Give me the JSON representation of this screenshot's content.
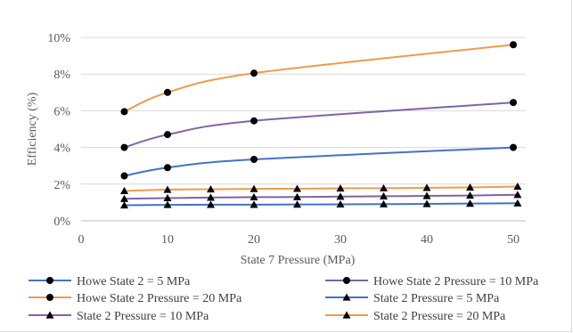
{
  "chart_data": {
    "type": "scatter",
    "xlabel": "State 7 Pressure (MPa)",
    "ylabel": "Efficiency (%)",
    "xlim": [
      0,
      50
    ],
    "ylim": [
      0,
      10
    ],
    "x_ticks": [
      0,
      10,
      20,
      30,
      40,
      50
    ],
    "y_ticks": [
      0,
      2,
      4,
      6,
      8,
      10
    ],
    "y_tick_labels": [
      "0%",
      "2%",
      "4%",
      "6%",
      "8%",
      "10%"
    ],
    "x_tick_labels": [
      "0",
      "10",
      "20",
      "30",
      "40",
      "50"
    ],
    "grid": "horizontal",
    "legend_position": "bottom",
    "series": [
      {
        "name": "Howe State 2 = 5 MPa",
        "color": "#4472c4",
        "marker": "circle",
        "x": [
          5,
          10,
          20,
          50
        ],
        "y": [
          2.45,
          2.9,
          3.35,
          4.0
        ]
      },
      {
        "name": "Howe State 2 Pressure = 10 MPa",
        "color": "#8064a2",
        "marker": "circle",
        "x": [
          5,
          10,
          20,
          50
        ],
        "y": [
          4.0,
          4.7,
          5.45,
          6.45
        ]
      },
      {
        "name": "Howe State 2 Pressure = 20 MPa",
        "color": "#ed9c4c",
        "marker": "circle",
        "x": [
          5,
          10,
          20,
          50
        ],
        "y": [
          5.95,
          7.0,
          8.05,
          9.6
        ]
      },
      {
        "name": "State 2 Pressure = 5 MPa",
        "color": "#4472c4",
        "marker": "triangle",
        "x": [
          5,
          10,
          15,
          20,
          25,
          30,
          35,
          40,
          45,
          50.5
        ],
        "y": [
          0.85,
          0.87,
          0.88,
          0.88,
          0.89,
          0.9,
          0.91,
          0.92,
          0.94,
          0.96
        ]
      },
      {
        "name": "State 2 Pressure = 10 MPa",
        "color": "#8064a2",
        "marker": "triangle",
        "x": [
          5,
          10,
          15,
          20,
          25,
          30,
          35,
          40,
          45,
          50.5
        ],
        "y": [
          1.2,
          1.24,
          1.27,
          1.29,
          1.3,
          1.32,
          1.34,
          1.36,
          1.38,
          1.42
        ]
      },
      {
        "name": "State 2 Pressure = 20 MPa",
        "color": "#ed9c4c",
        "marker": "triangle",
        "x": [
          5,
          10,
          15,
          20,
          25,
          30,
          35,
          40,
          45,
          50.5
        ],
        "y": [
          1.63,
          1.7,
          1.72,
          1.74,
          1.75,
          1.77,
          1.78,
          1.8,
          1.82,
          1.87
        ]
      }
    ],
    "legend": [
      {
        "series": 0,
        "row": 0,
        "col": 0
      },
      {
        "series": 2,
        "row": 1,
        "col": 0
      },
      {
        "series": 4,
        "row": 2,
        "col": 0
      },
      {
        "series": 1,
        "row": 0,
        "col": 1
      },
      {
        "series": 3,
        "row": 1,
        "col": 1
      },
      {
        "series": 5,
        "row": 2,
        "col": 1
      }
    ]
  }
}
